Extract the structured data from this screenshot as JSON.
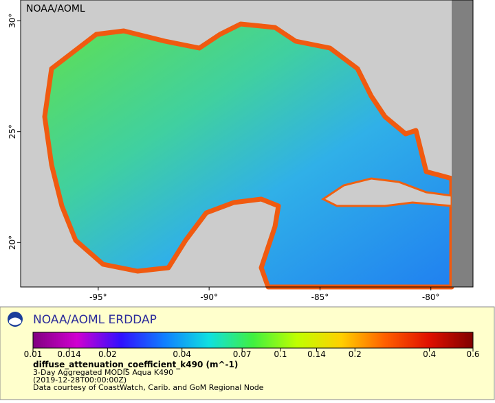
{
  "map": {
    "label": "NOAA/AOML",
    "lonlim": [
      -98.5,
      -78.1
    ],
    "latlim": [
      18,
      30.93
    ],
    "xticks": [
      {
        "value": -95,
        "label": "-95°"
      },
      {
        "value": -90,
        "label": "-90°"
      },
      {
        "value": -85,
        "label": "-85°"
      },
      {
        "value": -80,
        "label": "-80°"
      }
    ],
    "yticks": [
      {
        "value": 20,
        "label": "20°"
      },
      {
        "value": 25,
        "label": "25°"
      },
      {
        "value": 30,
        "label": "30°"
      }
    ]
  },
  "legend": {
    "title": "NOAA/AOML ERDDAP",
    "colorbar": {
      "scale": "log",
      "lim": [
        0.01,
        0.6
      ],
      "ticks": [
        0.01,
        0.014,
        0.02,
        0.04,
        0.07,
        0.1,
        0.14,
        0.2,
        0.4,
        0.6
      ],
      "colors": [
        "#800080",
        "#d000d0",
        "#3010ff",
        "#1080ff",
        "#10e0e0",
        "#40f040",
        "#c0ff00",
        "#ffd000",
        "#ff6000",
        "#e01000",
        "#800000"
      ]
    },
    "variable": "diffuse_attenuation_coefficient_k490 (m^-1)",
    "lines": [
      "3-Day Aggregated MODIS Aqua K490",
      "(2019-12-28T00:00:00Z)",
      "Data courtesy of CoastWatch, Carib. and GoM Regional Node"
    ]
  }
}
